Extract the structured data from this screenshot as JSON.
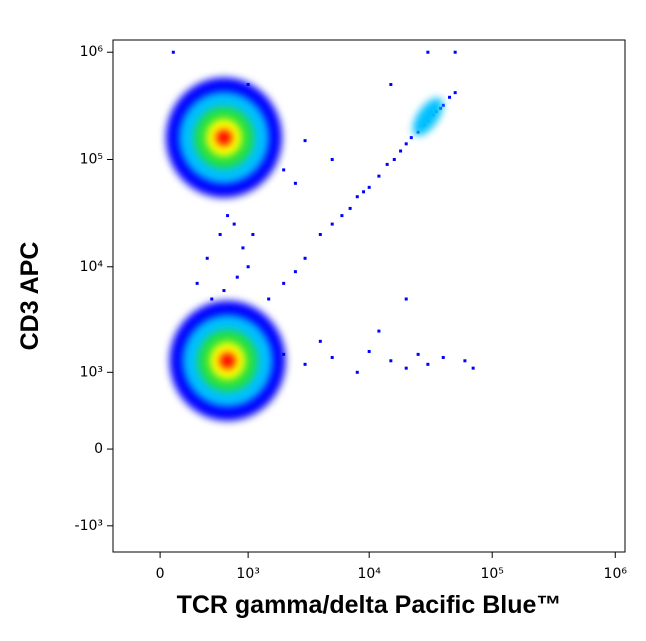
{
  "chart_data": {
    "type": "scatter",
    "scale": "biexponential",
    "x_label": "TCR gamma/delta Pacific Blue™",
    "y_label": "CD3 APC",
    "xlim": [
      -400,
      1200000
    ],
    "ylim": [
      -1800,
      1300000
    ],
    "xticks": [
      0,
      {
        "value": 1000,
        "label": "10³"
      },
      {
        "value": 10000,
        "label": "10⁴"
      },
      {
        "value": 100000,
        "label": "10⁵"
      },
      {
        "value": 1000000,
        "label": "10⁶"
      }
    ],
    "yticks": [
      {
        "value": -1000,
        "label": "-10³"
      },
      0,
      {
        "value": 1000,
        "label": "10³"
      },
      {
        "value": 10000,
        "label": "10⁴"
      },
      {
        "value": 100000,
        "label": "10⁵"
      },
      {
        "value": 1000000,
        "label": "10⁶"
      }
    ],
    "series": [
      {
        "color": "#0000ff",
        "x": [
          3000,
          4000,
          5000,
          6000,
          7000,
          8000,
          9000,
          10000,
          12000,
          14000,
          16000,
          18000,
          20000,
          25000,
          30000,
          35000,
          40000,
          45000,
          50000,
          2500,
          2000,
          1500,
          22000,
          28000,
          33000,
          38000,
          500,
          700,
          600,
          800,
          400,
          900,
          550,
          750,
          650,
          450,
          850,
          1000,
          300,
          1100,
          2000,
          3000,
          5000,
          8000,
          10000,
          15000,
          20000,
          25000,
          30000,
          40000,
          60000,
          70000,
          4000,
          12000,
          1500,
          2000,
          3000,
          5000,
          1200,
          1000,
          2500,
          30000,
          50000,
          15000,
          20000,
          100
        ],
        "y": [
          12000,
          20000,
          25000,
          30000,
          35000,
          45000,
          50000,
          55000,
          70000,
          90000,
          100000,
          120000,
          140000,
          180000,
          230000,
          280000,
          320000,
          380000,
          420000,
          9000,
          7000,
          5000,
          160000,
          210000,
          260000,
          300000,
          3000,
          4000,
          6000,
          8000,
          12000,
          15000,
          20000,
          25000,
          30000,
          5000,
          3500,
          10000,
          7000,
          20000,
          1500,
          1200,
          1400,
          1000,
          1600,
          1300,
          1100,
          1500,
          1200,
          1400,
          1300,
          1100,
          2000,
          2500,
          120000,
          80000,
          150000,
          100000,
          300000,
          500000,
          60000,
          1000000,
          1000000,
          500000,
          5000,
          1000000
        ]
      },
      {
        "color": "#0000ff",
        "x": [
          600,
          650
        ],
        "y": [
          160000,
          1300
        ]
      },
      {
        "color": "#00c0ff",
        "x": [
          600,
          650,
          30000
        ],
        "y": [
          160000,
          1300,
          250000
        ]
      },
      {
        "color": "#20e040",
        "x": [
          600,
          650
        ],
        "y": [
          160000,
          1300
        ]
      },
      {
        "color": "#ffff00",
        "x": [
          600,
          650
        ],
        "y": [
          160000,
          1300
        ]
      },
      {
        "color": "#ff0000",
        "x": [
          600,
          650
        ],
        "y": [
          160000,
          1300
        ]
      }
    ]
  }
}
